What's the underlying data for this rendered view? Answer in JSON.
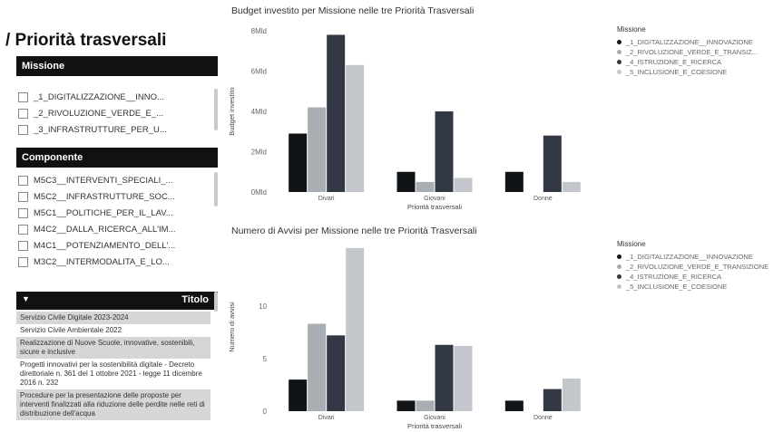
{
  "page": {
    "title": "/ Priorità trasversali"
  },
  "missione_filter": {
    "header": "Missione",
    "items": [
      {
        "label": "_1_DIGITALIZZAZIONE__INNO..."
      },
      {
        "label": "_2_RIVOLUZIONE_VERDE_E_..."
      },
      {
        "label": "_3_INFRASTRUTTURE_PER_U..."
      }
    ]
  },
  "componente_filter": {
    "header": "Componente",
    "items": [
      {
        "label": "M5C3__INTERVENTI_SPECIALI_..."
      },
      {
        "label": "M5C2__INFRASTRUTTURE_SOC..."
      },
      {
        "label": "M5C1__POLITICHE_PER_IL_LAV..."
      },
      {
        "label": "M4C2__DALLA_RICERCA_ALL'IM..."
      },
      {
        "label": "M4C1__POTENZIAMENTO_DELL'..."
      },
      {
        "label": "M3C2__INTERMODALITA_E_LO..."
      }
    ]
  },
  "titolo_table": {
    "header": "Titolo",
    "sort_glyph": "▼",
    "rows": [
      {
        "text": "Servizio Civile Digitale 2023-2024"
      },
      {
        "text": "Servizio Civile Ambientale 2022"
      },
      {
        "text": "Realizzazione di Nuove Scuole, innovative, sostenibili, sicure e inclusive"
      },
      {
        "text": "Progetti innovativi per la sostenibilità digitale - Decreto direttoriale n. 361 del 1 ottobre 2021 - legge 11 dicembre 2016 n. 232"
      },
      {
        "text": "Procedure per la presentazione delle proposte per interventi finalizzati alla riduzione delle perdite nelle reti di distribuzione dell'acqua"
      }
    ]
  },
  "legend1": {
    "title": "Missione",
    "items": [
      {
        "label": "_1_DIGITALIZZAZIONE__INNOVAZIONE",
        "color": "#111417"
      },
      {
        "label": "_2_RIVOLUZIONE_VERDE_E_TRANSIZ...",
        "color": "#a9adb4"
      },
      {
        "label": "_4_ISTRUZIONE_E_RICERCA",
        "color": "#333944"
      },
      {
        "label": "_5_INCLUSIONE_E_COESIONE",
        "color": "#c3c6cb"
      }
    ]
  },
  "legend2": {
    "title": "Missione",
    "items": [
      {
        "label": "_1_DIGITALIZZAZIONE__INNOVAZIONE",
        "color": "#111417"
      },
      {
        "label": "_2_RIVOLUZIONE_VERDE_E_TRANSIZIONE",
        "color": "#a9adb4"
      },
      {
        "label": "_4_ISTRUZIONE_E_RICERCA",
        "color": "#333944"
      },
      {
        "label": "_5_INCLUSIONE_E_COESIONE",
        "color": "#c3c6cb"
      }
    ]
  },
  "chart_data": [
    {
      "type": "bar",
      "title": "Budget investito per Missione nelle tre Priorità Trasversali",
      "xlabel": "Priorità trasversali",
      "ylabel": "Budget investito",
      "categories": [
        "Divari",
        "Giovani",
        "Donne"
      ],
      "ylim": [
        0,
        8
      ],
      "yticks": [
        0,
        2,
        4,
        6,
        8
      ],
      "ytick_labels": [
        "0Mld",
        "2Mld",
        "4Mld",
        "6Mld",
        "8Mld"
      ],
      "series": [
        {
          "name": "_1_DIGITALIZZAZIONE__INNOVAZIONE",
          "values": [
            2.9,
            1.0,
            1.0
          ],
          "color": "#111417"
        },
        {
          "name": "_2_RIVOLUZIONE_VERDE_E_TRANSIZ...",
          "values": [
            4.2,
            0.5,
            null
          ],
          "color": "#a9adb4"
        },
        {
          "name": "_4_ISTRUZIONE_E_RICERCA",
          "values": [
            7.8,
            4.0,
            2.8
          ],
          "color": "#333944"
        },
        {
          "name": "_5_INCLUSIONE_E_COESIONE",
          "values": [
            6.3,
            0.7,
            0.5
          ],
          "color": "#c3c6cb"
        }
      ]
    },
    {
      "type": "bar",
      "title": "Numero di Avvisi per Missione nelle tre Priorità Trasversali",
      "xlabel": "Priorità trasversali",
      "ylabel": "Numero di avvisi",
      "categories": [
        "Divari",
        "Giovani",
        "Donne"
      ],
      "ylim": [
        0,
        16
      ],
      "yticks": [
        0,
        5,
        10
      ],
      "ytick_labels": [
        "0",
        "5",
        "10"
      ],
      "series": [
        {
          "name": "_1_DIGITALIZZAZIONE__INNOVAZIONE",
          "values": [
            3,
            1,
            1
          ],
          "color": "#111417"
        },
        {
          "name": "_2_RIVOLUZIONE_VERDE_E_TRANSIZIONE",
          "values": [
            8.3,
            1,
            null
          ],
          "color": "#a9adb4"
        },
        {
          "name": "_4_ISTRUZIONE_E_RICERCA",
          "values": [
            7.2,
            6.3,
            2.1
          ],
          "color": "#333944"
        },
        {
          "name": "_5_INCLUSIONE_E_COESIONE",
          "values": [
            15.5,
            6.2,
            3.1
          ],
          "color": "#c3c6cb"
        }
      ]
    }
  ]
}
